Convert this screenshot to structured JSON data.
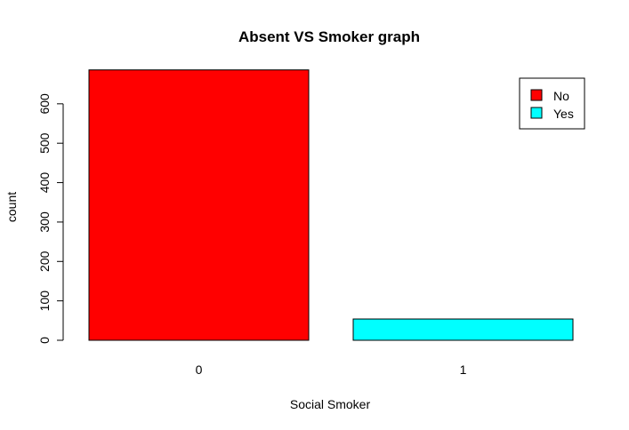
{
  "chart_data": {
    "type": "bar",
    "title": "Absent VS Smoker graph",
    "xlabel": "Social Smoker",
    "ylabel": "count",
    "categories": [
      "0",
      "1"
    ],
    "values": [
      686,
      54
    ],
    "bar_colors": [
      "#ff0000",
      "#00ffff"
    ],
    "ylim": [
      0,
      686
    ],
    "yticks": [
      0,
      100,
      200,
      300,
      400,
      500,
      600
    ],
    "grid": false,
    "legend": {
      "placement": "top-right",
      "entries": [
        {
          "label": "No",
          "color": "#ff0000"
        },
        {
          "label": "Yes",
          "color": "#00ffff"
        }
      ]
    }
  }
}
